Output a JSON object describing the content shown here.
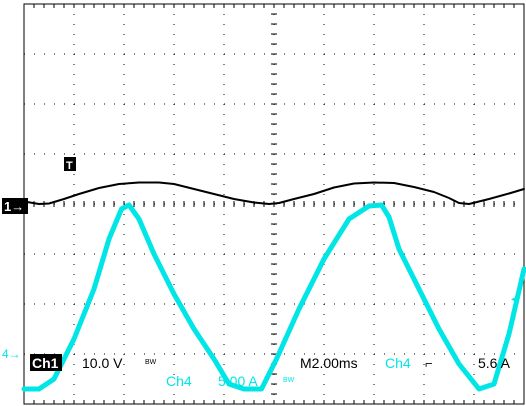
{
  "chart_data": {
    "type": "line",
    "title": "",
    "xlabel": "",
    "ylabel": "",
    "grid": true,
    "grid_divisions": {
      "x": 10,
      "y": 8
    },
    "x_unit": "ms",
    "x_per_div": 2.0,
    "xlim": [
      0,
      20
    ],
    "series": [
      {
        "name": "Ch1",
        "color": "#000000",
        "scale_per_div": 10.0,
        "unit": "V",
        "ground_division": 0,
        "x": [
          0,
          0.6,
          1.0,
          1.6,
          2.2,
          3.0,
          3.8,
          4.6,
          5.4,
          6.0,
          6.8,
          7.6,
          8.4,
          9.2,
          9.8,
          10.2,
          10.8,
          11.6,
          12.4,
          13.2,
          14.0,
          14.8,
          15.6,
          16.4,
          17.0,
          17.4,
          17.8,
          18.6,
          19.4,
          20.0
        ],
        "y": [
          0.5,
          0,
          0.1,
          1.0,
          2.0,
          3.2,
          4.0,
          4.3,
          4.3,
          4.0,
          3.0,
          2.0,
          1.0,
          0.3,
          0,
          0.2,
          1.0,
          2.0,
          3.3,
          4.1,
          4.3,
          4.2,
          3.4,
          2.4,
          1.2,
          0.2,
          0,
          1.0,
          2.1,
          3.0
        ]
      },
      {
        "name": "Ch4",
        "color": "#00e5e5",
        "scale_per_div": 5.0,
        "unit": "A",
        "ground_division": -3.7,
        "x": [
          0,
          0.6,
          1.2,
          2.0,
          2.8,
          3.4,
          3.9,
          4.2,
          4.6,
          5.2,
          6.0,
          6.8,
          7.6,
          8.2,
          8.8,
          9.5,
          10.1,
          11.0,
          12.0,
          13.0,
          13.8,
          14.3,
          14.6,
          15.0,
          15.8,
          16.6,
          17.4,
          18.2,
          18.8,
          19.4,
          20.0
        ],
        "y": [
          0,
          0,
          1.0,
          5.0,
          10.0,
          15.0,
          18.0,
          18.4,
          17.0,
          13.5,
          9.5,
          6.0,
          3.0,
          0.5,
          0,
          0,
          3.0,
          8.0,
          13.0,
          17.0,
          18.3,
          18.4,
          17.2,
          14.0,
          10.0,
          6.0,
          2.5,
          0,
          0.5,
          5.5,
          12.0
        ]
      }
    ],
    "annotations": {
      "ch1_marker": "1→",
      "ch4_marker": "4→",
      "trigger_level_marker": "◂",
      "trigger_point_marker": "T"
    }
  },
  "readout": {
    "ch1_name": "Ch1",
    "ch1_scale": "10.0 V",
    "ch1_bw": "BW",
    "ch4_name": "Ch4",
    "ch4_scale": "5.00 A",
    "ch4_bw": "BW",
    "timebase": "M2.00ms",
    "trigger_source": "Ch4",
    "trigger_slope": "⌐",
    "trigger_level": "5.6 A"
  },
  "colors": {
    "background": "#ffffff",
    "grid": "#000000",
    "ch1": "#000000",
    "ch4": "#00e5e5"
  }
}
